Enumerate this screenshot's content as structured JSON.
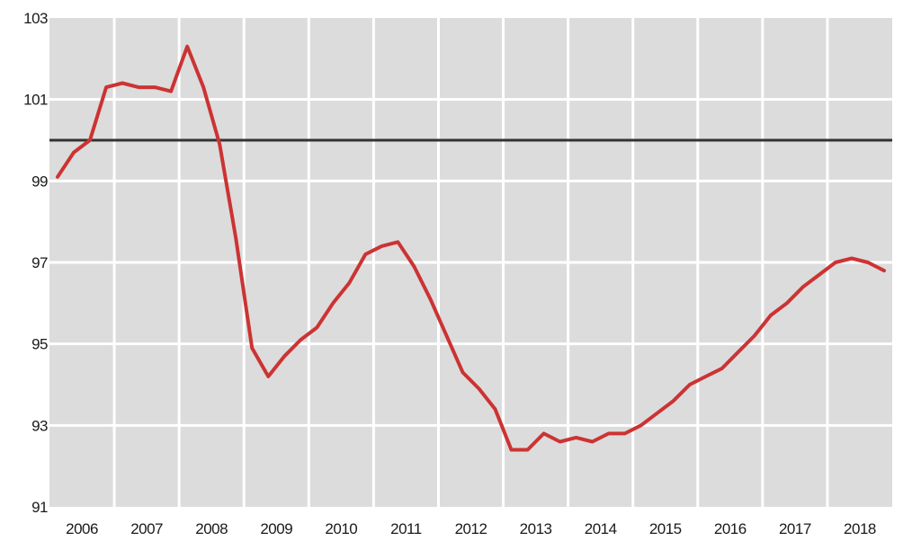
{
  "chart_data": {
    "type": "line",
    "title": "",
    "xlabel": "",
    "ylabel": "",
    "ylim": [
      91,
      103
    ],
    "yticks": [
      91,
      93,
      95,
      97,
      99,
      101,
      103
    ],
    "xlim": [
      2006,
      2019
    ],
    "x_tick_labels": [
      "2006",
      "2007",
      "2008",
      "2009",
      "2010",
      "2011",
      "2012",
      "2013",
      "2014",
      "2015",
      "2016",
      "2017",
      "2018"
    ],
    "grid": true,
    "reference_line": {
      "y": 100,
      "color": "#333333"
    },
    "colors": {
      "plot_background": "#dcdcdc",
      "grid": "#ffffff",
      "series": "#cc3333"
    },
    "series": [
      {
        "name": "",
        "x": [
          2006.0,
          2006.25,
          2006.5,
          2006.75,
          2007.0,
          2007.25,
          2007.5,
          2007.75,
          2008.0,
          2008.25,
          2008.5,
          2008.75,
          2009.0,
          2009.25,
          2009.5,
          2009.75,
          2010.0,
          2010.25,
          2010.5,
          2010.75,
          2011.0,
          2011.25,
          2011.5,
          2011.75,
          2012.0,
          2012.25,
          2012.5,
          2012.75,
          2013.0,
          2013.25,
          2013.5,
          2013.75,
          2014.0,
          2014.25,
          2014.5,
          2014.75,
          2015.0,
          2015.25,
          2015.5,
          2015.75,
          2016.0,
          2016.25,
          2016.5,
          2016.75,
          2017.0,
          2017.25,
          2017.5,
          2017.75,
          2018.0,
          2018.25,
          2018.5,
          2018.75
        ],
        "values": [
          99.1,
          99.7,
          100.0,
          101.3,
          101.4,
          101.3,
          101.3,
          101.2,
          102.3,
          101.3,
          99.9,
          97.6,
          94.9,
          94.2,
          94.7,
          95.1,
          95.4,
          96.0,
          96.5,
          97.2,
          97.4,
          97.5,
          96.9,
          96.1,
          95.2,
          94.3,
          93.9,
          93.4,
          92.4,
          92.4,
          92.8,
          92.6,
          92.7,
          92.6,
          92.8,
          92.8,
          93.0,
          93.3,
          93.6,
          94.0,
          94.2,
          94.4,
          94.8,
          95.2,
          95.7,
          96.0,
          96.4,
          96.7,
          97.0,
          97.1,
          97.0,
          96.8
        ]
      }
    ]
  }
}
